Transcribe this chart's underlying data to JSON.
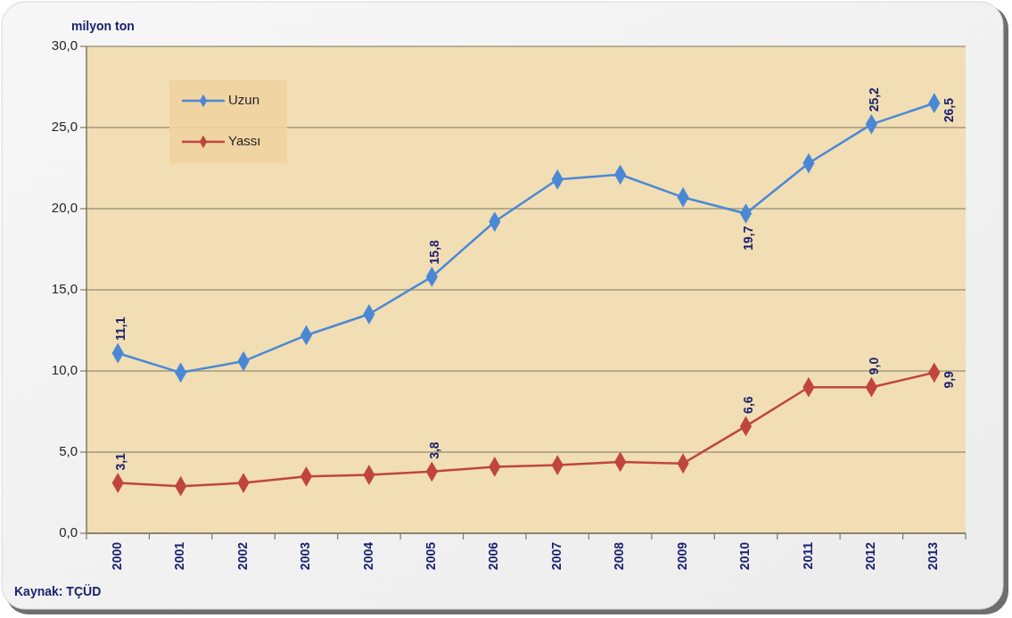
{
  "chart_data": {
    "type": "line",
    "ylabel": "milyon ton",
    "annotations": [
      "Kaynak: TÇÜD"
    ],
    "categories": [
      "2000",
      "2001",
      "2002",
      "2003",
      "2004",
      "2005",
      "2006",
      "2007",
      "2008",
      "2009",
      "2010",
      "2011",
      "2012",
      "2013"
    ],
    "series": [
      {
        "name": "Uzun",
        "color": "#4a88d6",
        "values": [
          11.1,
          9.9,
          10.6,
          12.2,
          13.5,
          15.8,
          19.2,
          21.8,
          22.1,
          20.7,
          19.7,
          22.8,
          25.2,
          26.5
        ],
        "value_labels": [
          "11,1",
          null,
          null,
          null,
          null,
          "15,8",
          null,
          null,
          null,
          null,
          "19,7",
          null,
          "25,2",
          "26,5"
        ]
      },
      {
        "name": "Yassı",
        "color": "#c0453f",
        "values": [
          3.1,
          2.9,
          3.1,
          3.5,
          3.6,
          3.8,
          4.1,
          4.2,
          4.4,
          4.3,
          6.6,
          9.0,
          9.0,
          9.9
        ],
        "value_labels": [
          "3,1",
          null,
          null,
          null,
          null,
          "3,8",
          null,
          null,
          null,
          null,
          "6,6",
          null,
          "9,0",
          "9,9"
        ]
      }
    ],
    "ylim": [
      0,
      30
    ],
    "yticks": [
      {
        "value": 0,
        "label": "0,0"
      },
      {
        "value": 5,
        "label": "5,0"
      },
      {
        "value": 10,
        "label": "10,0"
      },
      {
        "value": 15,
        "label": "15,0"
      },
      {
        "value": 20,
        "label": "20,0"
      },
      {
        "value": 25,
        "label": "25,0"
      },
      {
        "value": 30,
        "label": "30,0"
      }
    ],
    "grid": "y",
    "legend": "top left",
    "marker": "diamond",
    "line_style": "solid"
  }
}
